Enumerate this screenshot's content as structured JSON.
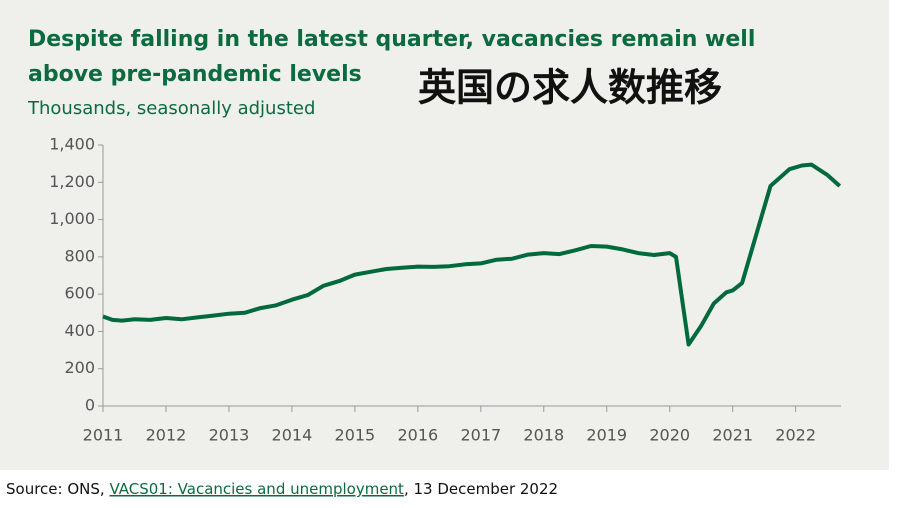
{
  "chart_data": {
    "type": "line",
    "title": "Despite falling in the latest quarter, vacancies remain well above pre-pandemic levels",
    "subtitle": "Thousands, seasonally adjusted",
    "annotation": "英国の求人数推移",
    "source": {
      "prefix": "Source: ONS,",
      "link": "VACS01: Vacancies and unemployment",
      "suffix": ", 13 December 2022"
    },
    "x": [
      2011.0,
      2011.15,
      2011.3,
      2011.5,
      2011.75,
      2012.0,
      2012.25,
      2012.5,
      2012.75,
      2013.0,
      2013.25,
      2013.5,
      2013.75,
      2014.0,
      2014.25,
      2014.5,
      2014.75,
      2015.0,
      2015.25,
      2015.5,
      2015.75,
      2016.0,
      2016.25,
      2016.5,
      2016.75,
      2017.0,
      2017.25,
      2017.5,
      2017.75,
      2018.0,
      2018.25,
      2018.5,
      2018.75,
      2019.0,
      2019.25,
      2019.5,
      2019.75,
      2020.0,
      2020.1,
      2020.3,
      2020.5,
      2020.7,
      2020.9,
      2021.0,
      2021.15,
      2021.4,
      2021.6,
      2021.9,
      2022.1,
      2022.25,
      2022.5,
      2022.7
    ],
    "series": [
      {
        "name": "Vacancies",
        "color": "#006a3c",
        "values": [
          480,
          462,
          458,
          465,
          462,
          472,
          465,
          475,
          485,
          495,
          500,
          525,
          540,
          570,
          595,
          645,
          670,
          705,
          720,
          735,
          742,
          748,
          746,
          750,
          760,
          765,
          785,
          790,
          812,
          820,
          815,
          835,
          858,
          855,
          840,
          820,
          810,
          820,
          800,
          330,
          430,
          550,
          610,
          620,
          660,
          950,
          1180,
          1270,
          1290,
          1295,
          1240,
          1180
        ]
      }
    ],
    "xlim": [
      2011,
      2022.72
    ],
    "xticks": [
      2011,
      2012,
      2013,
      2014,
      2015,
      2016,
      2017,
      2018,
      2019,
      2020,
      2021,
      2022
    ],
    "ylim": [
      0,
      1400
    ],
    "yticks": [
      0,
      200,
      400,
      600,
      {
        "value": 800,
        "label": "800"
      },
      {
        "value": 1000,
        "label": "1,000"
      },
      {
        "value": 1200,
        "label": "1,200"
      },
      {
        "value": 1400,
        "label": "1,400"
      }
    ],
    "grid": false
  }
}
